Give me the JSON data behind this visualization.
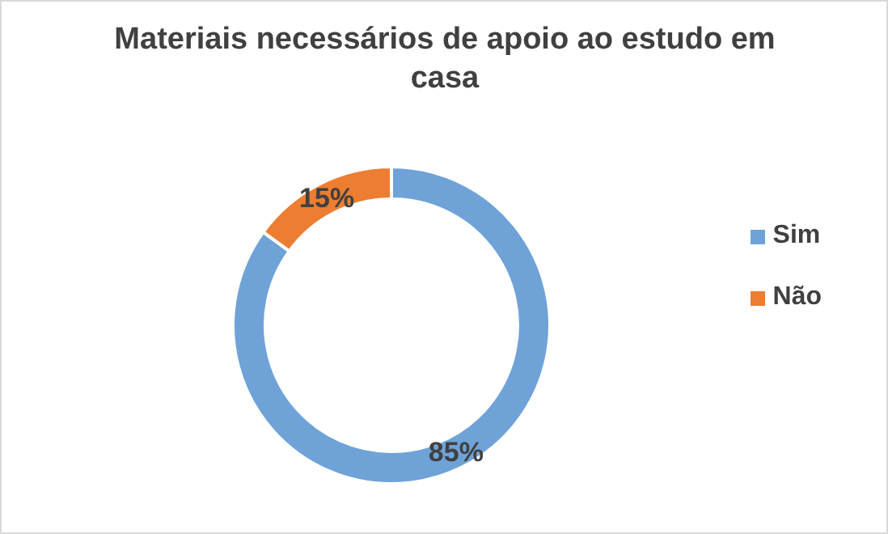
{
  "chart_data": {
    "type": "donut",
    "title": "Materiais necessários de apoio ao estudo em casa",
    "categories": [
      "Sim",
      "Não"
    ],
    "values": [
      85,
      15
    ],
    "colors": [
      "#6fa3d8",
      "#ed7d31"
    ],
    "value_labels": [
      "85%",
      "15%"
    ],
    "legend": "right"
  }
}
